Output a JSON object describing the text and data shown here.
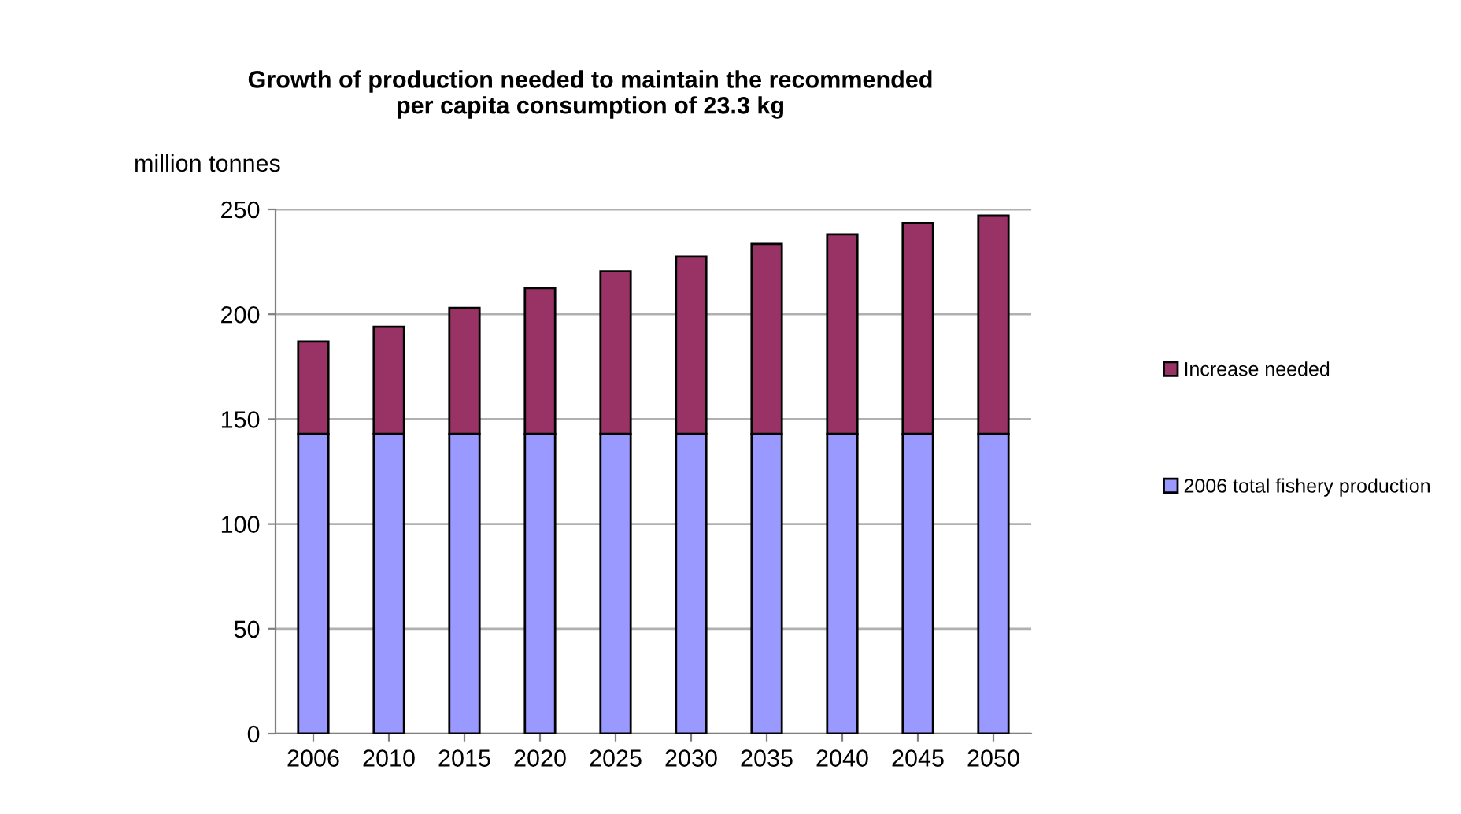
{
  "chart_data": {
    "type": "bar",
    "title": "Growth of production needed to maintain the recommended\nper capita consumption of 23.3 kg",
    "ylabel": "million tonnes",
    "categories": [
      "2006",
      "2010",
      "2015",
      "2020",
      "2025",
      "2030",
      "2035",
      "2040",
      "2045",
      "2050"
    ],
    "stacked": true,
    "series": [
      {
        "name": "2006 total fishery production",
        "color": "#9999ff",
        "values": [
          143,
          143,
          143,
          143,
          143,
          143,
          143,
          143,
          143,
          143
        ]
      },
      {
        "name": "Increase needed",
        "color": "#993366",
        "values": [
          44,
          51,
          60,
          69.5,
          77.5,
          84.5,
          90.5,
          95,
          100.5,
          104
        ]
      }
    ],
    "ylim": [
      0,
      250
    ],
    "yticks": [
      0,
      50,
      100,
      150,
      200,
      250
    ],
    "grid": "y",
    "legend": "right"
  }
}
